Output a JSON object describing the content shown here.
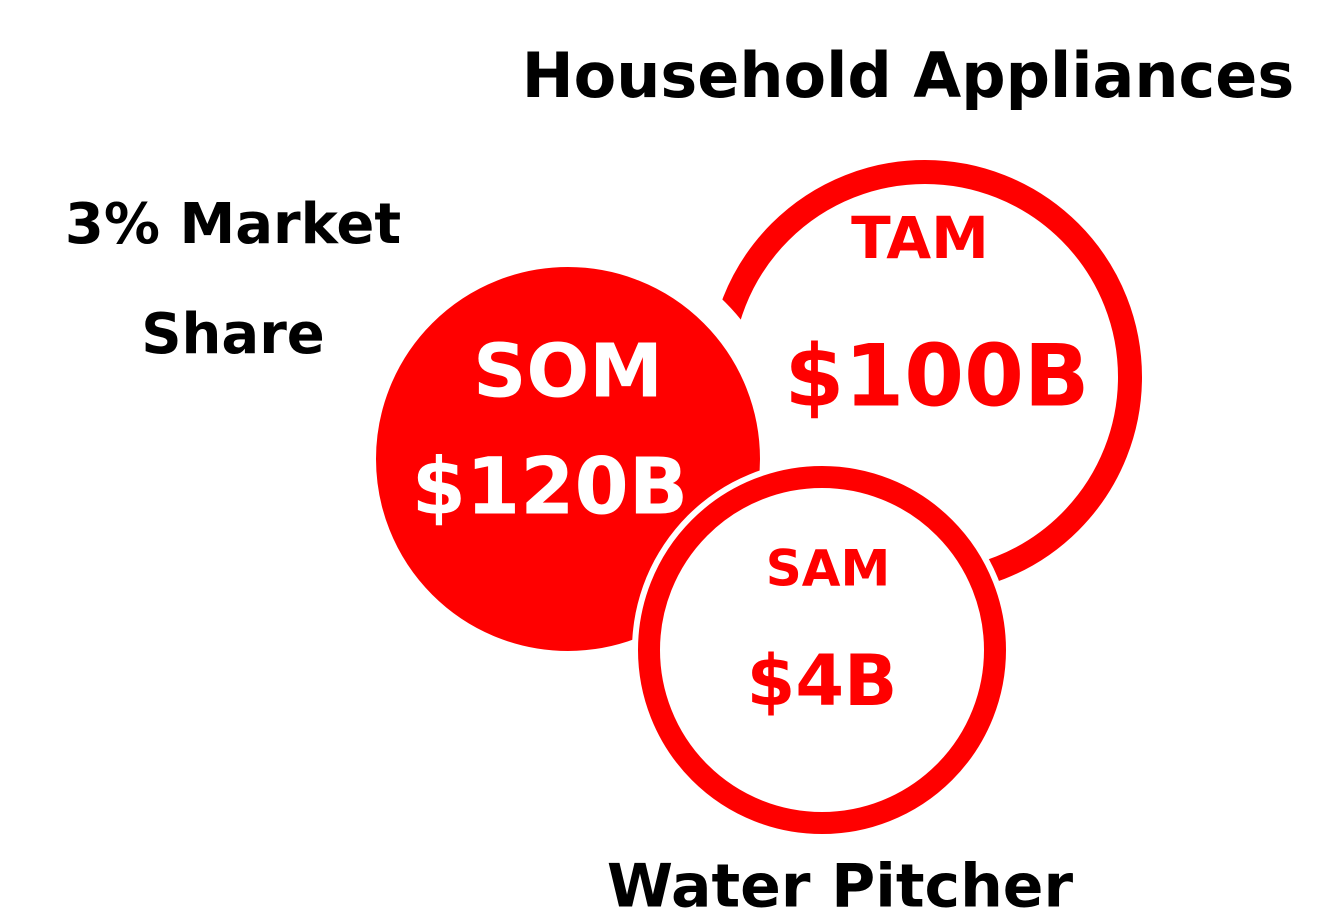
{
  "title": "Household Appliances",
  "note": {
    "lines": [
      "3% Market",
      "Share"
    ]
  },
  "circles": [
    {
      "label": "TAM",
      "value": "$100B"
    },
    {
      "label": "SOM",
      "value": "$120B"
    },
    {
      "label": "SAM",
      "value": "$4B"
    }
  ],
  "caption": "Water Pitcher"
}
